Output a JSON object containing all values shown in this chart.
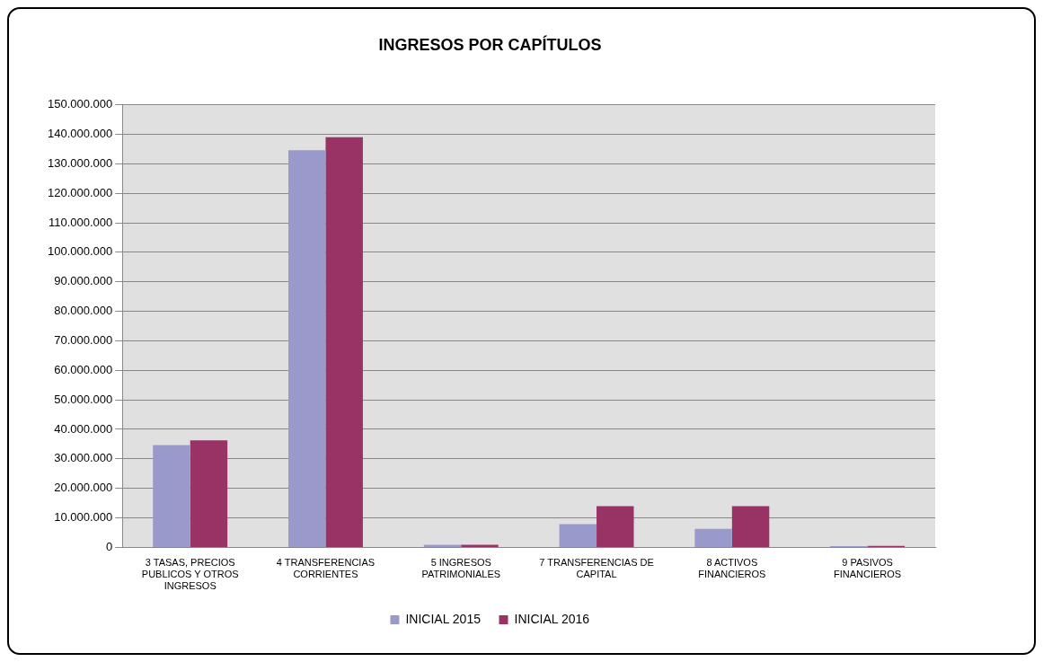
{
  "chart_data": {
    "type": "bar",
    "title": "INGRESOS POR CAPÍTULOS",
    "categories": [
      "3 TASAS, PRECIOS PUBLICOS Y OTROS INGRESOS",
      "4 TRANSFERENCIAS CORRIENTES",
      "5 INGRESOS PATRIMONIALES",
      "7 TRANSFERENCIAS DE CAPITAL",
      "8 ACTIVOS FINANCIEROS",
      "9 PASIVOS FINANCIEROS"
    ],
    "series": [
      {
        "name": "INICIAL 2015",
        "color": "#9999cc",
        "values": [
          34700000,
          134600000,
          900000,
          7900000,
          6300000,
          400000
        ]
      },
      {
        "name": "INICIAL 2016",
        "color": "#993366",
        "values": [
          36300000,
          139000000,
          900000,
          14000000,
          14000000,
          500000
        ]
      }
    ],
    "ylim": [
      0,
      150000000
    ],
    "yticks": [
      0,
      {
        "value": 10000000,
        "label": "10.000.000"
      },
      {
        "value": 20000000,
        "label": "20.000.000"
      },
      {
        "value": 30000000,
        "label": "30.000.000"
      },
      {
        "value": 40000000,
        "label": "40.000.000"
      },
      {
        "value": 50000000,
        "label": "50.000.000"
      },
      {
        "value": 60000000,
        "label": "60.000.000"
      },
      {
        "value": 70000000,
        "label": "70.000.000"
      },
      {
        "value": 80000000,
        "label": "80.000.000"
      },
      {
        "value": 90000000,
        "label": "90.000.000"
      },
      {
        "value": 100000000,
        "label": "100.000.000"
      },
      {
        "value": 110000000,
        "label": "110.000.000"
      },
      {
        "value": 120000000,
        "label": "120.000.000"
      },
      {
        "value": 130000000,
        "label": "130.000.000"
      },
      {
        "value": 140000000,
        "label": "140.000.000"
      },
      {
        "value": 150000000,
        "label": "150.000.000"
      }
    ],
    "grid": "y",
    "legend": "bottom"
  }
}
